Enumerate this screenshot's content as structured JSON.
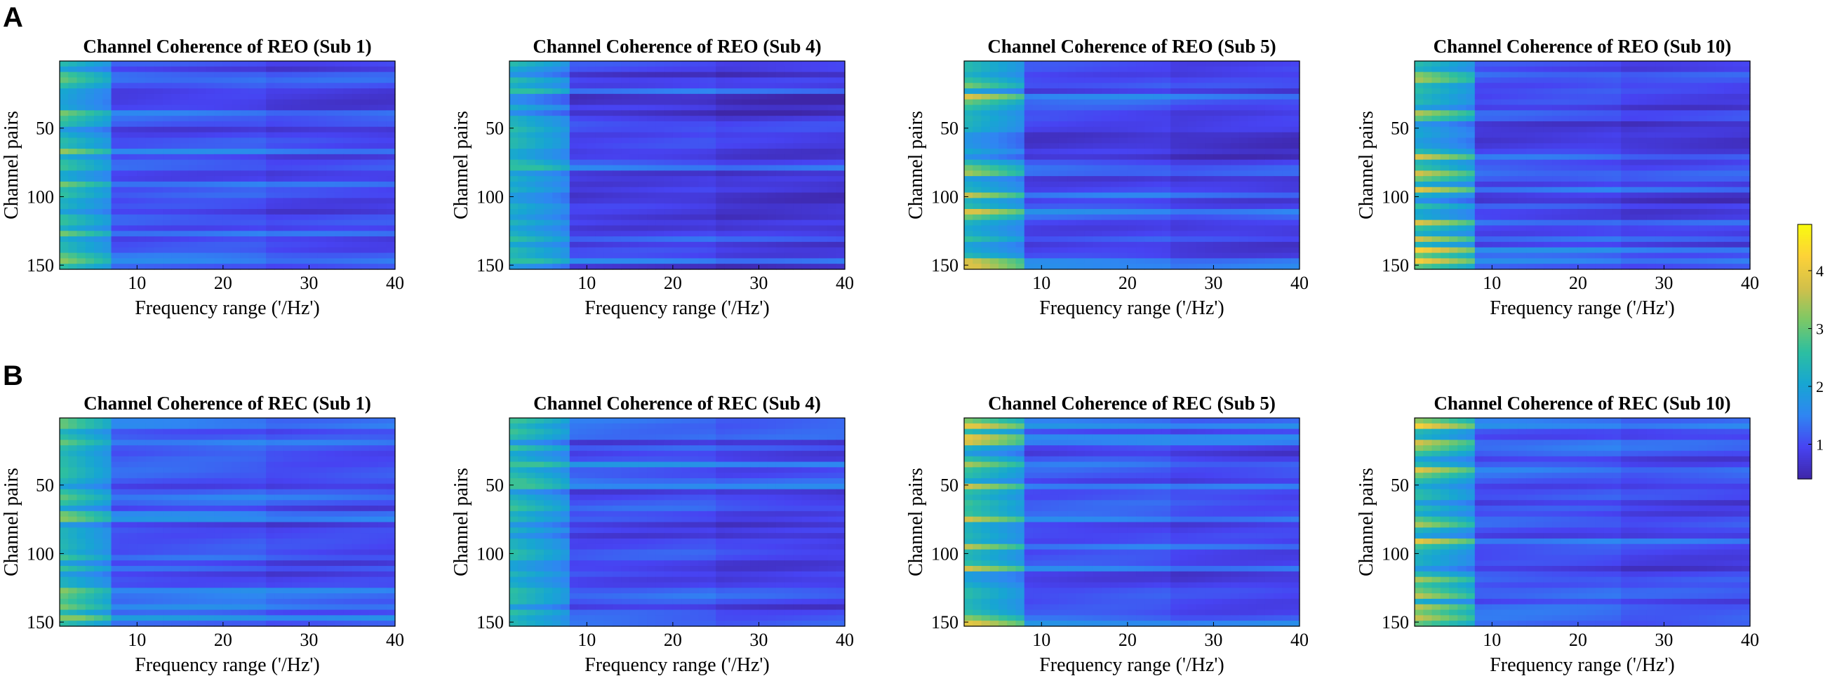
{
  "panel_labels": [
    "A",
    "B"
  ],
  "colors": {
    "colormap": [
      "#3e26a8",
      "#4743f2",
      "#2f86f2",
      "#17a6d2",
      "#2dbfa0",
      "#7cc866",
      "#d2c04a",
      "#fdd238",
      "#f9fb0e"
    ],
    "background": "#ffffff",
    "text": "#000000"
  },
  "chart_data": [
    {
      "type": "heatmap",
      "row": "A",
      "title": "Channel Coherence of REO (Sub 1)",
      "xlabel": "Frequency range ('/Hz')",
      "ylabel": "Channel pairs",
      "xlim": [
        1,
        40
      ],
      "ylim": [
        1,
        153
      ],
      "xticks": [
        10,
        20,
        30,
        40
      ],
      "yticks": [
        50,
        100,
        150
      ],
      "low_freq_cutoff_hz": 7,
      "peak_value": 3.3,
      "bright_rows": [
        14,
        40,
        68,
        90,
        128,
        142,
        148
      ],
      "mid_band_value": 0.9
    },
    {
      "type": "heatmap",
      "row": "A",
      "title": "Channel Coherence of REO (Sub 4)",
      "xlabel": "Frequency range ('/Hz')",
      "ylabel": "Channel pairs",
      "xlim": [
        1,
        40
      ],
      "ylim": [
        1,
        153
      ],
      "xticks": [
        10,
        20,
        30,
        40
      ],
      "yticks": [
        50,
        100,
        150
      ],
      "low_freq_cutoff_hz": 8,
      "peak_value": 2.6,
      "bright_rows": [
        6,
        22,
        48,
        78,
        130,
        147
      ],
      "mid_band_value": 0.7
    },
    {
      "type": "heatmap",
      "row": "A",
      "title": "Channel Coherence of REO (Sub 5)",
      "xlabel": "Frequency range ('/Hz')",
      "ylabel": "Channel pairs",
      "xlim": [
        1,
        40
      ],
      "ylim": [
        1,
        153
      ],
      "xticks": [
        10,
        20,
        30,
        40
      ],
      "yticks": [
        50,
        100,
        150
      ],
      "low_freq_cutoff_hz": 8,
      "peak_value": 3.8,
      "bright_rows": [
        18,
        28,
        82,
        100,
        112,
        146,
        150
      ],
      "mid_band_value": 0.8
    },
    {
      "type": "heatmap",
      "row": "A",
      "title": "Channel Coherence of REO (Sub 10)",
      "xlabel": "Frequency range ('/Hz')",
      "ylabel": "Channel pairs",
      "xlim": [
        1,
        40
      ],
      "ylim": [
        1,
        153
      ],
      "xticks": [
        10,
        20,
        30,
        40
      ],
      "yticks": [
        50,
        100,
        150
      ],
      "low_freq_cutoff_hz": 8,
      "peak_value": 4.2,
      "bright_rows": [
        14,
        40,
        70,
        84,
        96,
        120,
        132,
        140,
        148
      ],
      "mid_band_value": 0.8
    },
    {
      "type": "heatmap",
      "row": "B",
      "title": "Channel Coherence of REC (Sub 1)",
      "xlabel": "Frequency range ('/Hz')",
      "ylabel": "Channel pairs",
      "xlim": [
        1,
        40
      ],
      "ylim": [
        1,
        153
      ],
      "xticks": [
        10,
        20,
        30,
        40
      ],
      "yticks": [
        50,
        100,
        150
      ],
      "low_freq_cutoff_hz": 7,
      "peak_value": 3.2,
      "bright_rows": [
        6,
        20,
        60,
        74,
        128,
        140,
        148
      ],
      "mid_band_value": 1.0
    },
    {
      "type": "heatmap",
      "row": "B",
      "title": "Channel Coherence of REC (Sub 4)",
      "xlabel": "Frequency range ('/Hz')",
      "ylabel": "Channel pairs",
      "xlim": [
        1,
        40
      ],
      "ylim": [
        1,
        153
      ],
      "xticks": [
        10,
        20,
        30,
        40
      ],
      "yticks": [
        50,
        100,
        150
      ],
      "low_freq_cutoff_hz": 8,
      "peak_value": 2.7,
      "bright_rows": [
        6,
        14,
        36,
        50,
        130,
        148,
        150
      ],
      "mid_band_value": 0.9
    },
    {
      "type": "heatmap",
      "row": "B",
      "title": "Channel Coherence of REC (Sub 5)",
      "xlabel": "Frequency range ('/Hz')",
      "ylabel": "Channel pairs",
      "xlim": [
        1,
        40
      ],
      "ylim": [
        1,
        153
      ],
      "xticks": [
        10,
        20,
        30,
        40
      ],
      "yticks": [
        50,
        100,
        150
      ],
      "low_freq_cutoff_hz": 8,
      "peak_value": 3.9,
      "bright_rows": [
        6,
        14,
        18,
        34,
        52,
        76,
        96,
        110,
        146,
        150
      ],
      "mid_band_value": 0.9
    },
    {
      "type": "heatmap",
      "row": "B",
      "title": "Channel Coherence of REC (Sub 10)",
      "xlabel": "Frequency range ('/Hz')",
      "ylabel": "Channel pairs",
      "xlim": [
        1,
        40
      ],
      "ylim": [
        1,
        153
      ],
      "xticks": [
        10,
        20,
        30,
        40
      ],
      "yticks": [
        50,
        100,
        150
      ],
      "low_freq_cutoff_hz": 8,
      "peak_value": 4.3,
      "bright_rows": [
        6,
        20,
        40,
        78,
        92,
        120,
        130,
        140,
        148
      ],
      "mid_band_value": 0.9
    }
  ],
  "colorbar": {
    "ticks": [
      1,
      2,
      3,
      4
    ],
    "min": 0.4,
    "max": 4.8
  }
}
